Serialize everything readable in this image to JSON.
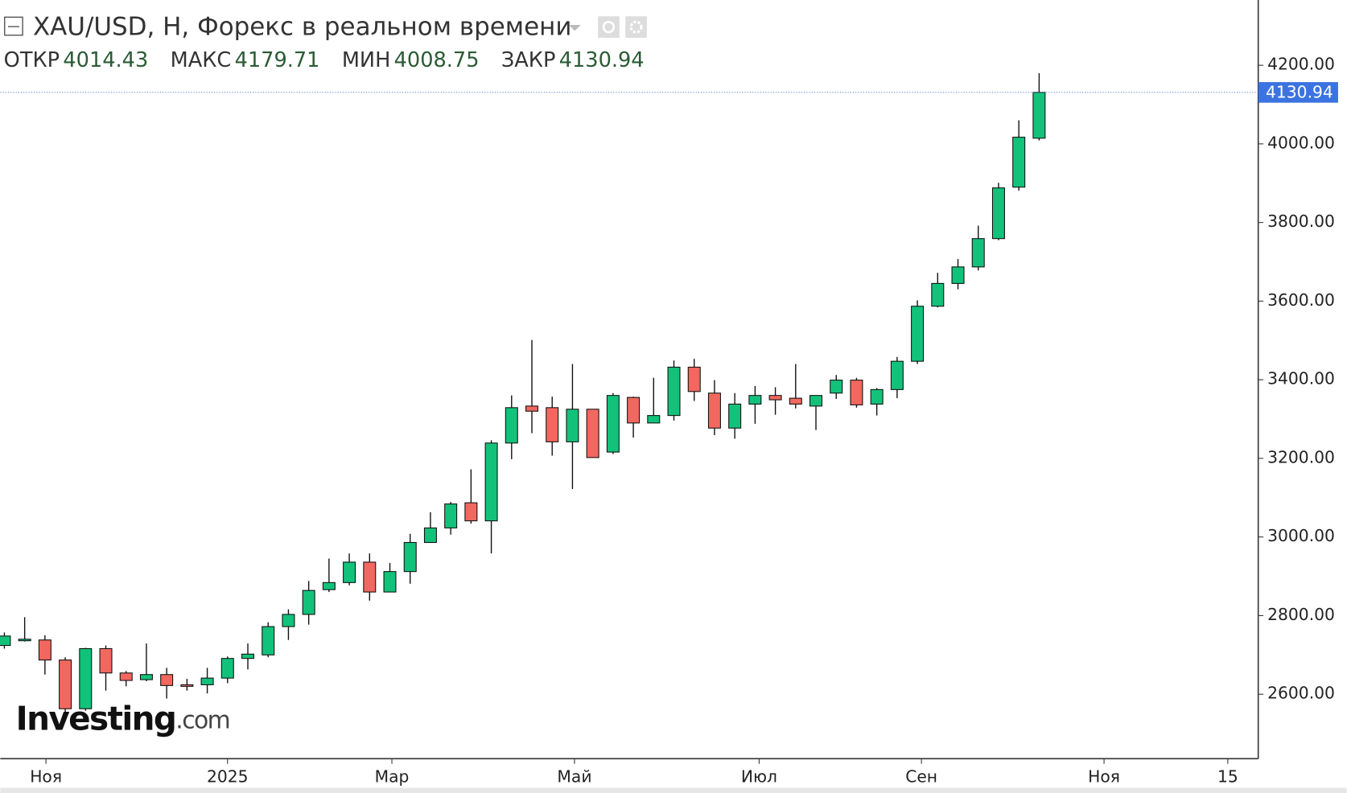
{
  "chart_data": {
    "type": "candlestick",
    "title": "XAU/USD, Н, Форекс в реальном времени",
    "ohlc_labels": [
      "ОТКР",
      "МАКС",
      "МИН",
      "ЗАКР"
    ],
    "logo": [
      "Investing",
      ".com"
    ],
    "open": [
      2724,
      2736,
      2738,
      2687,
      2563,
      2716,
      2654,
      2637,
      2650,
      2624,
      2624,
      2641,
      2691,
      2700,
      2772,
      2803,
      2866,
      2884,
      2936,
      2860,
      2912,
      2986,
      3023,
      3087,
      3041,
      3239,
      3333,
      3329,
      3242,
      3325,
      3216,
      3355,
      3290,
      3309,
      3432,
      3366,
      3277,
      3338,
      3360,
      3353,
      3333,
      3366,
      3399,
      3338,
      3375,
      3447,
      3587,
      3645,
      3687,
      3759,
      3890,
      4014.43
    ],
    "high": [
      2757,
      2796,
      2750,
      2694,
      2718,
      2724,
      2659,
      2729,
      2667,
      2639,
      2667,
      2696,
      2729,
      2783,
      2816,
      2888,
      2945,
      2958,
      2958,
      2934,
      3008,
      3063,
      3089,
      3172,
      3246,
      3360,
      3501,
      3357,
      3440,
      3325,
      3366,
      3357,
      3405,
      3449,
      3453,
      3399,
      3366,
      3384,
      3381,
      3440,
      3360,
      3412,
      3405,
      3379,
      3458,
      3602,
      3672,
      3707,
      3792,
      3901,
      4060,
      4179.71
    ],
    "low": [
      2716,
      2734,
      2650,
      2554,
      2558,
      2609,
      2620,
      2633,
      2589,
      2609,
      2602,
      2628,
      2663,
      2694,
      2738,
      2777,
      2860,
      2877,
      2838,
      2860,
      2881,
      2986,
      3006,
      3034,
      2958,
      3198,
      3264,
      3207,
      3122,
      3202,
      3211,
      3253,
      3290,
      3296,
      3346,
      3259,
      3250,
      3288,
      3311,
      3327,
      3272,
      3351,
      3329,
      3309,
      3353,
      3440,
      3584,
      3630,
      3678,
      3755,
      3881,
      4008.75
    ],
    "close": [
      2748,
      2740,
      2687,
      2563,
      2716,
      2654,
      2635,
      2650,
      2622,
      2620,
      2641,
      2691,
      2702,
      2772,
      2803,
      2864,
      2884,
      2936,
      2860,
      2912,
      2986,
      3023,
      3084,
      3041,
      3239,
      3329,
      3320,
      3242,
      3325,
      3202,
      3360,
      3290,
      3309,
      3432,
      3370,
      3277,
      3338,
      3360,
      3349,
      3338,
      3360,
      3399,
      3336,
      3375,
      3447,
      3587,
      3645,
      3687,
      3759,
      3888,
      4017,
      4130.94
    ],
    "up_color": "#13c27a",
    "down_color": "#f2675f",
    "ylim": [
      2436,
      4366
    ],
    "yticks": [
      {
        "value": 2600,
        "label": "2600.00"
      },
      {
        "value": 2800,
        "label": "2800.00"
      },
      {
        "value": 3000,
        "label": "3000.00"
      },
      {
        "value": 3200,
        "label": "3200.00"
      },
      {
        "value": 3400,
        "label": "3400.00"
      },
      {
        "value": 3600,
        "label": "3600.00"
      },
      {
        "value": 3800,
        "label": "3800.00"
      },
      {
        "value": 4000,
        "label": "4000.00"
      },
      {
        "value": 4200,
        "label": "4200.00"
      }
    ],
    "xlim": [
      -0.2,
      61.8
    ],
    "xticks": [
      {
        "value": 2.05,
        "label": "Ноя"
      },
      {
        "value": 11,
        "label": "2025"
      },
      {
        "value": 19.1,
        "label": "Мар"
      },
      {
        "value": 28.1,
        "label": "Май"
      },
      {
        "value": 37.2,
        "label": "Июл"
      },
      {
        "value": 45.2,
        "label": "Сен"
      },
      {
        "value": 54.2,
        "label": "Ноя"
      },
      {
        "value": 60.3,
        "label": "15"
      }
    ]
  }
}
